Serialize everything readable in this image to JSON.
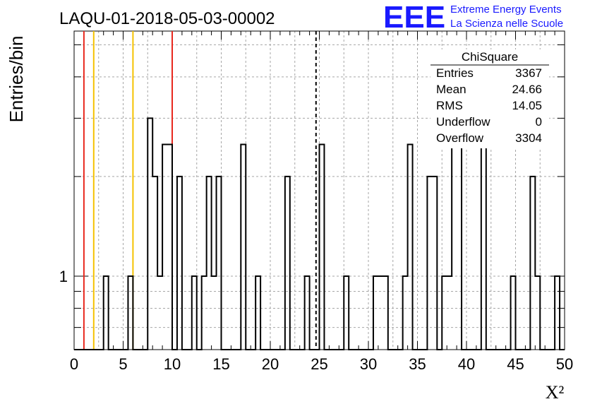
{
  "chart_data": {
    "type": "histogram",
    "title": "LAQU-01-2018-05-03-00002",
    "xlabel": "X²",
    "ylabel": "Entries/bin",
    "xlim": [
      0,
      50
    ],
    "y_scale": "log",
    "y_tick_labels": [
      "1"
    ],
    "x_tick_labels": [
      "0",
      "5",
      "10",
      "15",
      "20",
      "25",
      "30",
      "35",
      "40",
      "45",
      "50"
    ],
    "grid": true,
    "bin_width": 0.5,
    "bins": [
      {
        "x0": 3.0,
        "count": 1
      },
      {
        "x0": 5.5,
        "count": 1
      },
      {
        "x0": 7.5,
        "count": 3
      },
      {
        "x0": 8.0,
        "count": 2
      },
      {
        "x0": 8.5,
        "count": 1
      },
      {
        "x0": 9.0,
        "count": 2.5
      },
      {
        "x0": 9.5,
        "count": 2.5
      },
      {
        "x0": 10.5,
        "count": 2
      },
      {
        "x0": 12.0,
        "count": 1
      },
      {
        "x0": 13.0,
        "count": 1
      },
      {
        "x0": 13.5,
        "count": 2
      },
      {
        "x0": 14.0,
        "count": 1
      },
      {
        "x0": 14.5,
        "count": 2
      },
      {
        "x0": 17.0,
        "count": 2.5
      },
      {
        "x0": 18.5,
        "count": 1
      },
      {
        "x0": 21.5,
        "count": 2
      },
      {
        "x0": 23.5,
        "count": 1
      },
      {
        "x0": 25.0,
        "count": 2.5
      },
      {
        "x0": 27.5,
        "count": 1
      },
      {
        "x0": 30.5,
        "count": 1
      },
      {
        "x0": 31.0,
        "count": 1
      },
      {
        "x0": 31.5,
        "count": 1
      },
      {
        "x0": 33.5,
        "count": 1
      },
      {
        "x0": 34.0,
        "count": 2.5
      },
      {
        "x0": 36.0,
        "count": 2
      },
      {
        "x0": 36.5,
        "count": 2
      },
      {
        "x0": 37.5,
        "count": 1
      },
      {
        "x0": 38.0,
        "count": 1
      },
      {
        "x0": 38.5,
        "count": 2.5
      },
      {
        "x0": 39.0,
        "count": 2.5
      },
      {
        "x0": 41.5,
        "count": 3.5
      },
      {
        "x0": 44.5,
        "count": 1
      },
      {
        "x0": 46.5,
        "count": 2
      },
      {
        "x0": 47.0,
        "count": 1
      },
      {
        "x0": 49.0,
        "count": 1
      }
    ],
    "vertical_lines": [
      {
        "x": 1.0,
        "color": "#e8281e",
        "style": "solid"
      },
      {
        "x": 2.0,
        "color": "#f5c200",
        "style": "solid"
      },
      {
        "x": 6.0,
        "color": "#f5c200",
        "style": "solid"
      },
      {
        "x": 10.0,
        "color": "#e8281e",
        "style": "solid"
      },
      {
        "x": 24.66,
        "color": "#000000",
        "style": "dashed"
      }
    ],
    "stats": {
      "title": "ChiSquare",
      "rows": [
        {
          "label": "Entries",
          "value": "3367"
        },
        {
          "label": "Mean",
          "value": "24.66"
        },
        {
          "label": "RMS",
          "value": "14.05"
        },
        {
          "label": "Underflow",
          "value": "0"
        },
        {
          "label": "Overflow",
          "value": "3304"
        }
      ]
    }
  },
  "logo": {
    "mark": "EEE",
    "line1": "Extreme Energy Events",
    "line2": "La Scienza nelle Scuole",
    "color": "#1a1aff"
  }
}
